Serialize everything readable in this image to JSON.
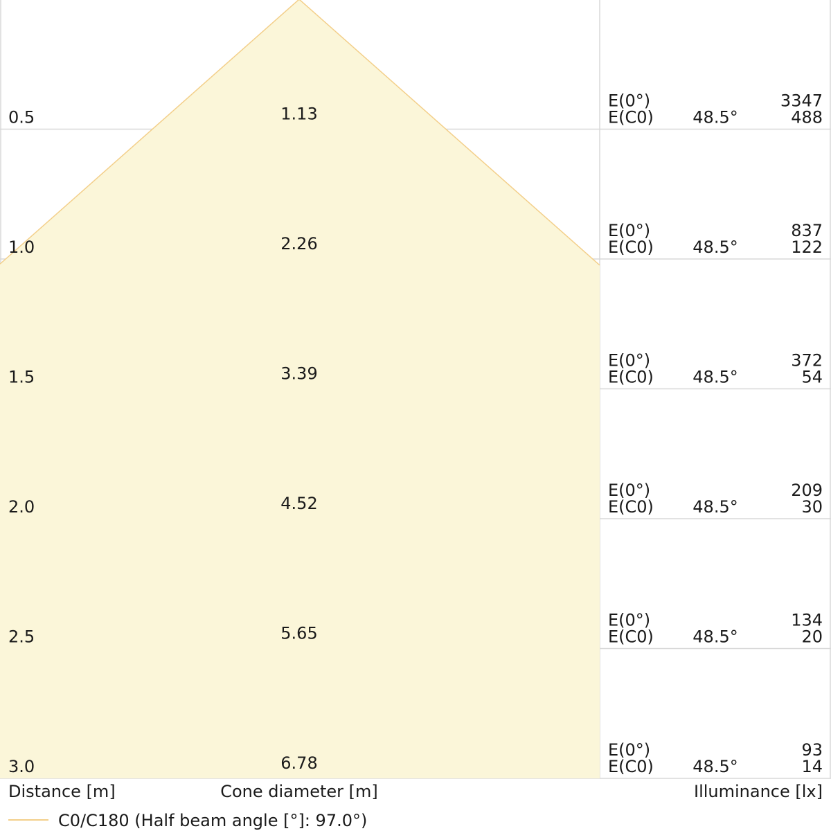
{
  "chart_data": {
    "type": "table",
    "title": "",
    "rows": [
      {
        "distance": "0.5",
        "cone_diameter": "1.13",
        "e0_label": "E(0°)",
        "ec0_label": "E(C0)",
        "angle": "48.5°",
        "e0": "3347",
        "ec0": "488"
      },
      {
        "distance": "1.0",
        "cone_diameter": "2.26",
        "e0_label": "E(0°)",
        "ec0_label": "E(C0)",
        "angle": "48.5°",
        "e0": "837",
        "ec0": "122"
      },
      {
        "distance": "1.5",
        "cone_diameter": "3.39",
        "e0_label": "E(0°)",
        "ec0_label": "E(C0)",
        "angle": "48.5°",
        "e0": "372",
        "ec0": "54"
      },
      {
        "distance": "2.0",
        "cone_diameter": "4.52",
        "e0_label": "E(0°)",
        "ec0_label": "E(C0)",
        "angle": "48.5°",
        "e0": "209",
        "ec0": "30"
      },
      {
        "distance": "2.5",
        "cone_diameter": "5.65",
        "e0_label": "E(0°)",
        "ec0_label": "E(C0)",
        "angle": "48.5°",
        "e0": "134",
        "ec0": "20"
      },
      {
        "distance": "3.0",
        "cone_diameter": "6.78",
        "e0_label": "E(0°)",
        "ec0_label": "E(C0)",
        "angle": "48.5°",
        "e0": "93",
        "ec0": "14"
      }
    ],
    "footer_labels": {
      "distance": "Distance [m]",
      "cone": "Cone diameter [m]",
      "illuminance": "Illuminance [lx]"
    },
    "legend": {
      "label": "C0/C180 (Half beam angle [°]: 97.0°)",
      "color": "#f3cf8a"
    },
    "half_beam_angle_deg": 97.0,
    "cone_fill": "#fbf6d9",
    "grid_color": "#d8d8d8"
  }
}
